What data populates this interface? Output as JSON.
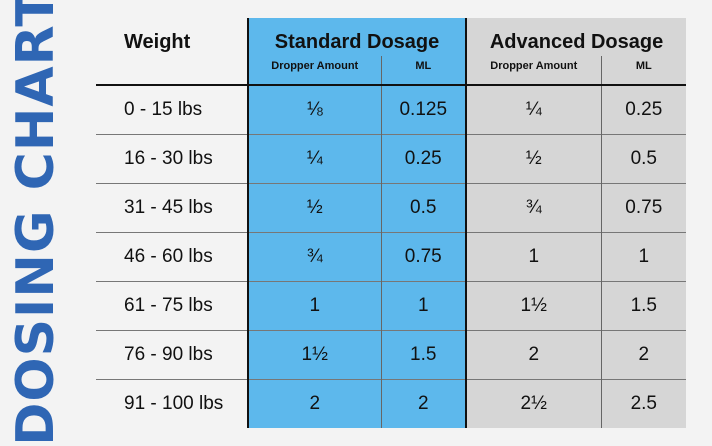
{
  "title": "DOSING CHART",
  "headers": {
    "weight": "Weight",
    "standard": "Standard Dosage",
    "advanced": "Advanced Dosage",
    "standard_sub": [
      "Dropper Amount",
      "ML"
    ],
    "advanced_sub": [
      "Dropper Amount",
      "ML"
    ]
  },
  "rows": [
    {
      "weight": "0 - 15 lbs",
      "std_dropper": "⅛",
      "std_ml": "0.125",
      "adv_dropper": "¼",
      "adv_ml": "0.25"
    },
    {
      "weight": "16 - 30 lbs",
      "std_dropper": "¼",
      "std_ml": "0.25",
      "adv_dropper": "½",
      "adv_ml": "0.5"
    },
    {
      "weight": "31 - 45 lbs",
      "std_dropper": "½",
      "std_ml": "0.5",
      "adv_dropper": "¾",
      "adv_ml": "0.75"
    },
    {
      "weight": "46 - 60 lbs",
      "std_dropper": "¾",
      "std_ml": "0.75",
      "adv_dropper": "1",
      "adv_ml": "1"
    },
    {
      "weight": "61 - 75 lbs",
      "std_dropper": "1",
      "std_ml": "1",
      "adv_dropper": "1½",
      "adv_ml": "1.5"
    },
    {
      "weight": "76 - 90 lbs",
      "std_dropper": "1½",
      "std_ml": "1.5",
      "adv_dropper": "2",
      "adv_ml": "2"
    },
    {
      "weight": "91 - 100 lbs",
      "std_dropper": "2",
      "std_ml": "2",
      "adv_dropper": "2½",
      "adv_ml": "2.5"
    }
  ],
  "colors": {
    "title": "#2f66b4",
    "standard_bg": "#5db8ec",
    "advanced_bg": "#d6d6d6",
    "page_bg": "#f3f3f3"
  }
}
